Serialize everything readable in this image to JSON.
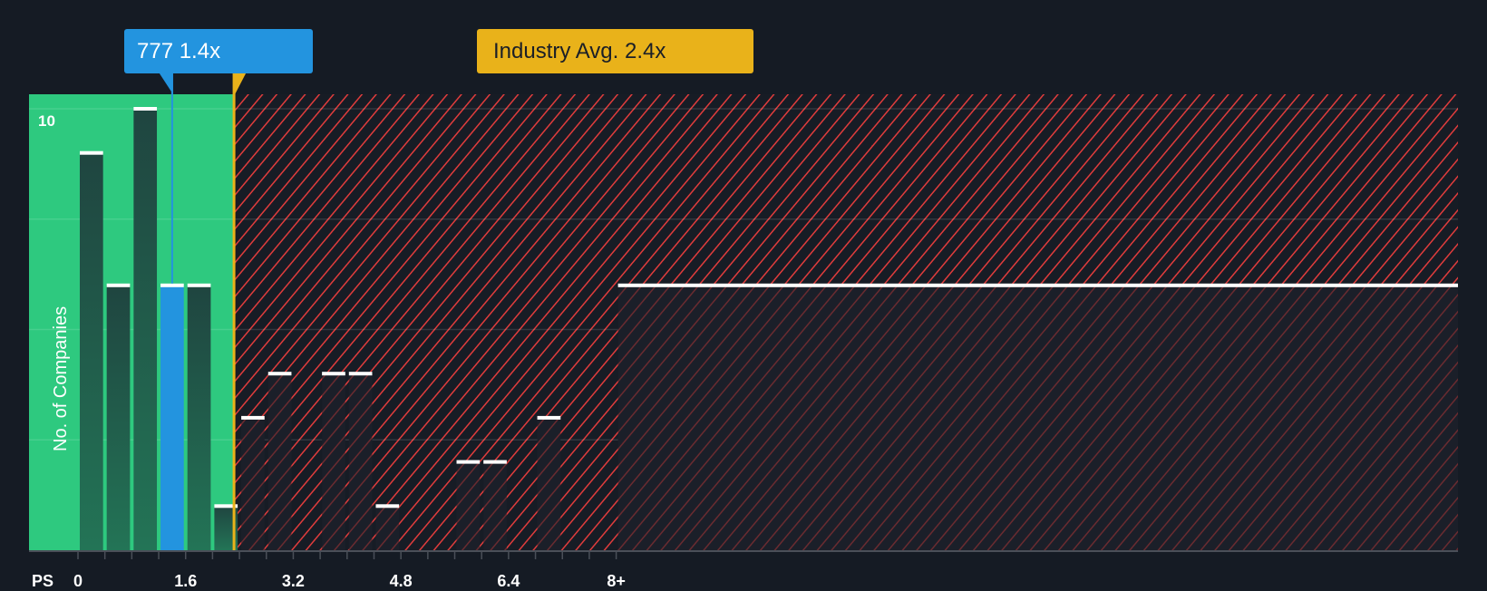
{
  "chart_data": {
    "type": "bar",
    "title": "",
    "xlabel": "PS",
    "ylabel": "No. of Companies",
    "x_tick_labels": [
      "0",
      "1.6",
      "3.2",
      "4.8",
      "6.4",
      "8+"
    ],
    "x_tick_values": [
      0,
      1.6,
      3.2,
      4.8,
      6.4,
      8.0
    ],
    "y_tick_labels": [
      "10"
    ],
    "ylim": [
      0,
      10.4
    ],
    "grid": true,
    "bin_width": 0.4,
    "categories": [
      "0-0.4",
      "0.4-0.8",
      "0.8-1.2",
      "1.2-1.6",
      "1.6-2.0",
      "2.0-2.4",
      "2.4-2.8",
      "2.8-3.2",
      "3.2-3.6",
      "3.6-4.0",
      "4.0-4.4",
      "4.4-4.8",
      "4.8-5.2",
      "5.2-5.6",
      "5.6-6.0",
      "6.0-6.4",
      "6.4-6.8",
      "6.8-7.2",
      "7.2-7.6",
      "7.6-8.0",
      "8+"
    ],
    "values": [
      9,
      6,
      10,
      6,
      6,
      1,
      3,
      4,
      0,
      4,
      4,
      1,
      0,
      0,
      2,
      2,
      0,
      3,
      0,
      0,
      6
    ],
    "highlight_index": 3,
    "annotations": [
      {
        "label": "777 1.4x",
        "value": 1.4,
        "color": "#2394df"
      },
      {
        "label": "Industry Avg. 2.4x",
        "value": 2.4,
        "color": "#e9b21a"
      }
    ],
    "regions": [
      {
        "name": "undervalued",
        "from": 0,
        "to": 2.3,
        "color": "#2ec97f"
      },
      {
        "name": "overvalued",
        "from": 2.3,
        "to": 8.4,
        "color": "#e03c3c",
        "pattern": "hatched"
      }
    ]
  },
  "labels": {
    "company": "777 1.4x",
    "industry": "Industry Avg. 2.4x",
    "y_axis": "No. of Companies",
    "x_axis": "PS",
    "y_top": "10"
  },
  "colors": {
    "background": "#151b24",
    "green_zone": "#2ec97f",
    "green_bar": "#214a40",
    "highlight_bar": "#2394df",
    "red_hatch": "#e03c3c",
    "industry": "#e9b21a",
    "bar_cap": "#ffffff"
  }
}
